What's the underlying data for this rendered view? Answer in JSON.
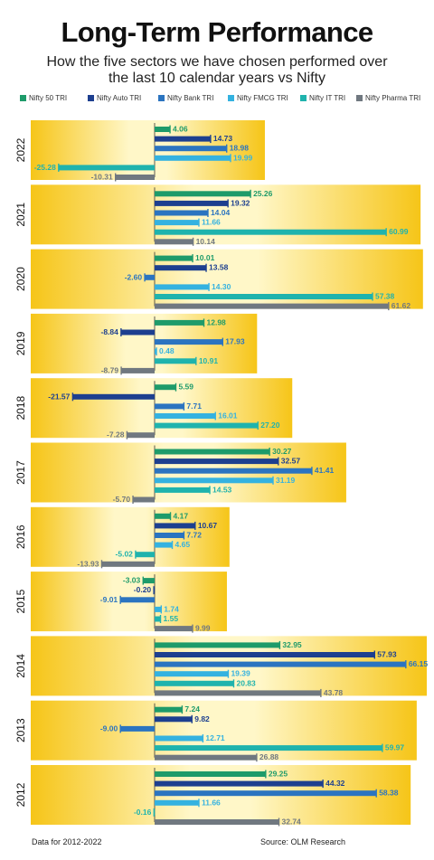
{
  "title": "Long-Term Performance",
  "subtitle": "How the five sectors we have chosen performed over the last 10 calendar years vs Nifty",
  "footer": {
    "note": "Data for 2012-2022",
    "source": "Source: OLM Research"
  },
  "colors": {
    "Nifty 50 TRI": "#1e9b6a",
    "Nifty Auto TRI": "#1d3f8f",
    "Nifty Bank TRI": "#2b74c0",
    "Nifty FMCG TRI": "#34b2e0",
    "Nifty IT TRI": "#1fb3ad",
    "Nifty Pharma TRI": "#707880",
    "panel": "#f6c518"
  },
  "chart_data": {
    "type": "bar",
    "orientation": "horizontal",
    "categories": [
      "2022",
      "2021",
      "2020",
      "2019",
      "2018",
      "2017",
      "2016",
      "2015",
      "2014",
      "2013",
      "2012"
    ],
    "legend": [
      "Nifty 50 TRI",
      "Nifty Auto TRI",
      "Nifty Bank TRI",
      "Nifty FMCG TRI",
      "Nifty IT TRI",
      "Nifty Pharma TRI"
    ],
    "legend_position": "top",
    "series": [
      {
        "name": "Nifty 50 TRI",
        "values": [
          4.06,
          25.26,
          10.01,
          12.98,
          5.59,
          30.27,
          4.17,
          -3.03,
          32.95,
          7.24,
          29.25
        ]
      },
      {
        "name": "Nifty Auto TRI",
        "values": [
          14.73,
          19.32,
          13.58,
          -8.84,
          -21.57,
          32.57,
          10.67,
          -0.2,
          57.93,
          9.82,
          44.32
        ]
      },
      {
        "name": "Nifty Bank TRI",
        "values": [
          18.98,
          14.04,
          -2.6,
          17.93,
          7.71,
          41.41,
          7.72,
          -9.01,
          66.15,
          -9.0,
          58.38
        ]
      },
      {
        "name": "Nifty FMCG TRI",
        "values": [
          19.99,
          11.66,
          14.3,
          0.48,
          16.01,
          31.19,
          4.65,
          1.74,
          19.39,
          12.71,
          11.66
        ]
      },
      {
        "name": "Nifty IT TRI",
        "values": [
          -25.28,
          60.99,
          57.38,
          10.91,
          27.2,
          14.53,
          -5.02,
          1.55,
          20.83,
          59.97,
          -0.16
        ]
      },
      {
        "name": "Nifty Pharma TRI",
        "values": [
          -10.31,
          10.14,
          61.62,
          -8.79,
          -7.28,
          -5.7,
          -13.93,
          9.99,
          43.78,
          26.88,
          32.74
        ]
      }
    ]
  }
}
